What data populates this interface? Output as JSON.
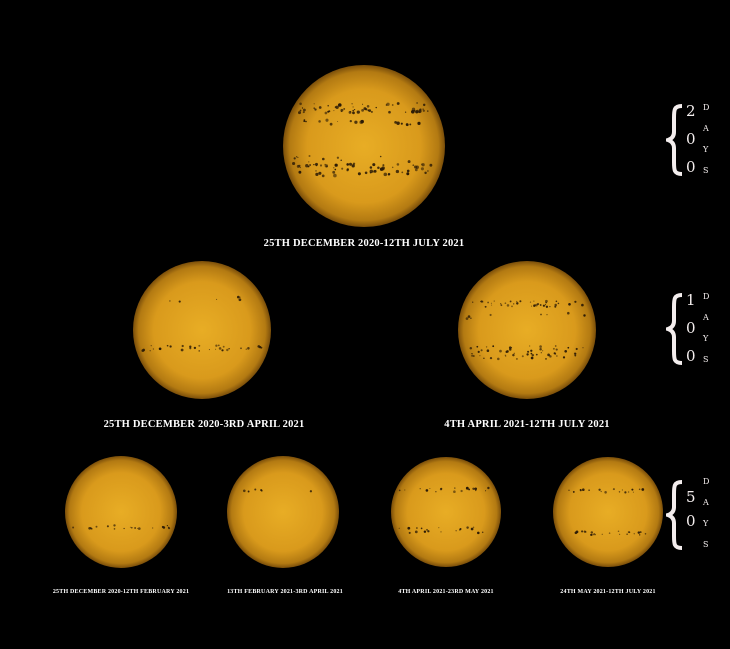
{
  "rows": [
    {
      "duration": "200",
      "unit": "DAYS",
      "images": [
        {
          "label": "25TH DECEMBER 2020-12TH JULY 2021"
        }
      ]
    },
    {
      "duration": "100",
      "unit": "DAYS",
      "images": [
        {
          "label": "25TH DECEMBER 2020-3RD APRIL 2021"
        },
        {
          "label": "4TH APRIL 2021-12TH JULY 2021"
        }
      ]
    },
    {
      "duration": "50",
      "unit": "DAYS",
      "images": [
        {
          "label": "25TH DECEMBER 2020-12TH FEBRUARY 2021"
        },
        {
          "label": "13TH FEBRUARY 2021-3RD APRIL 2021"
        },
        {
          "label": "4TH APRIL 2021-23RD MAY 2021"
        },
        {
          "label": "24TH MAY 2021-12TH JULY 2021"
        }
      ]
    }
  ],
  "colors": {
    "background": "#000000",
    "sun_center": "#e6aa22",
    "sun_limb": "#8a5a0c",
    "sunspot": "#2a1a06",
    "text": "#ffffff"
  }
}
